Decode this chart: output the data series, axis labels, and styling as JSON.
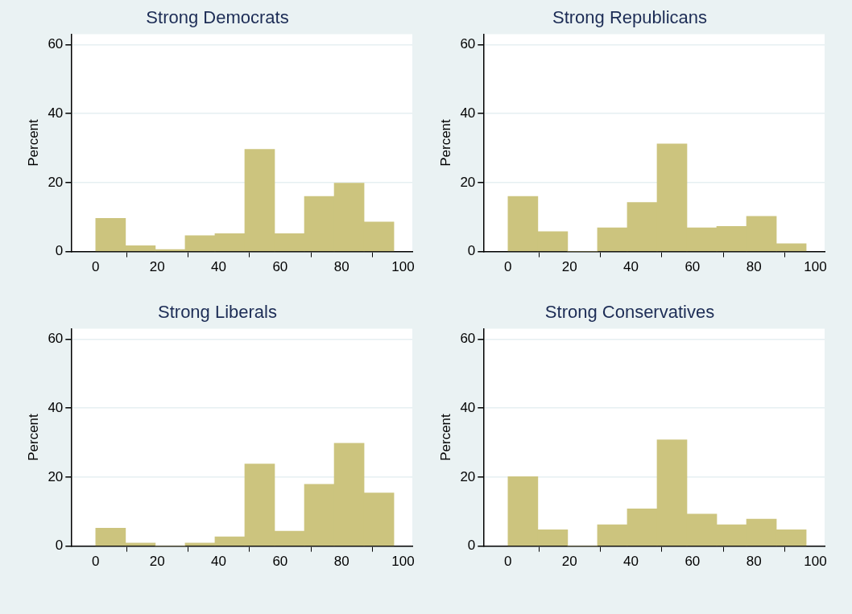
{
  "chart_data": [
    {
      "type": "histogram",
      "title": "Strong Democrats",
      "ylabel": "Percent",
      "bins": [
        0,
        9.7,
        19.4,
        29.1,
        38.8,
        48.5,
        58.2,
        67.9,
        77.6,
        87.3,
        97
      ],
      "values": [
        9.6,
        1.7,
        0.6,
        4.6,
        5.2,
        29.6,
        5.2,
        16,
        19.8,
        8.6
      ],
      "color": "#ccc47e",
      "xlim": [
        -8,
        103
      ],
      "xticks": [
        0,
        20,
        40,
        60,
        80,
        100
      ],
      "ylim": [
        0,
        63
      ],
      "yticks": [
        0,
        20,
        40,
        60
      ],
      "grid": "y"
    },
    {
      "type": "histogram",
      "title": "Strong Republicans",
      "ylabel": "Percent",
      "bins": [
        0,
        9.7,
        19.4,
        29.1,
        38.8,
        48.5,
        58.2,
        67.9,
        77.6,
        87.3,
        97
      ],
      "values": [
        16,
        5.8,
        0,
        6.9,
        14.2,
        31.2,
        6.9,
        7.3,
        10.2,
        2.3
      ],
      "color": "#ccc47e",
      "xlim": [
        -8,
        103
      ],
      "xticks": [
        0,
        20,
        40,
        60,
        80,
        100
      ],
      "ylim": [
        0,
        63
      ],
      "yticks": [
        0,
        20,
        40,
        60
      ],
      "grid": "y"
    },
    {
      "type": "histogram",
      "title": "Strong Liberals",
      "ylabel": "Percent",
      "bins": [
        0,
        9.7,
        19.4,
        29.1,
        38.8,
        48.5,
        58.2,
        67.9,
        77.6,
        87.3,
        97
      ],
      "values": [
        5.2,
        0.9,
        0,
        0.9,
        2.7,
        23.8,
        4.3,
        17.9,
        29.8,
        15.4
      ],
      "color": "#ccc47e",
      "xlim": [
        -8,
        103
      ],
      "xticks": [
        0,
        20,
        40,
        60,
        80,
        100
      ],
      "ylim": [
        0,
        63
      ],
      "yticks": [
        0,
        20,
        40,
        60
      ],
      "grid": "y"
    },
    {
      "type": "histogram",
      "title": "Strong Conservatives",
      "ylabel": "Percent",
      "bins": [
        0,
        9.7,
        19.4,
        29.1,
        38.8,
        48.5,
        58.2,
        67.9,
        77.6,
        87.3,
        97
      ],
      "values": [
        20.1,
        4.7,
        0,
        6.2,
        10.8,
        30.8,
        9.3,
        6.2,
        7.8,
        4.7
      ],
      "color": "#ccc47e",
      "xlim": [
        -8,
        103
      ],
      "xticks": [
        0,
        20,
        40,
        60,
        80,
        100
      ],
      "ylim": [
        0,
        63
      ],
      "yticks": [
        0,
        20,
        40,
        60
      ],
      "grid": "y"
    }
  ]
}
